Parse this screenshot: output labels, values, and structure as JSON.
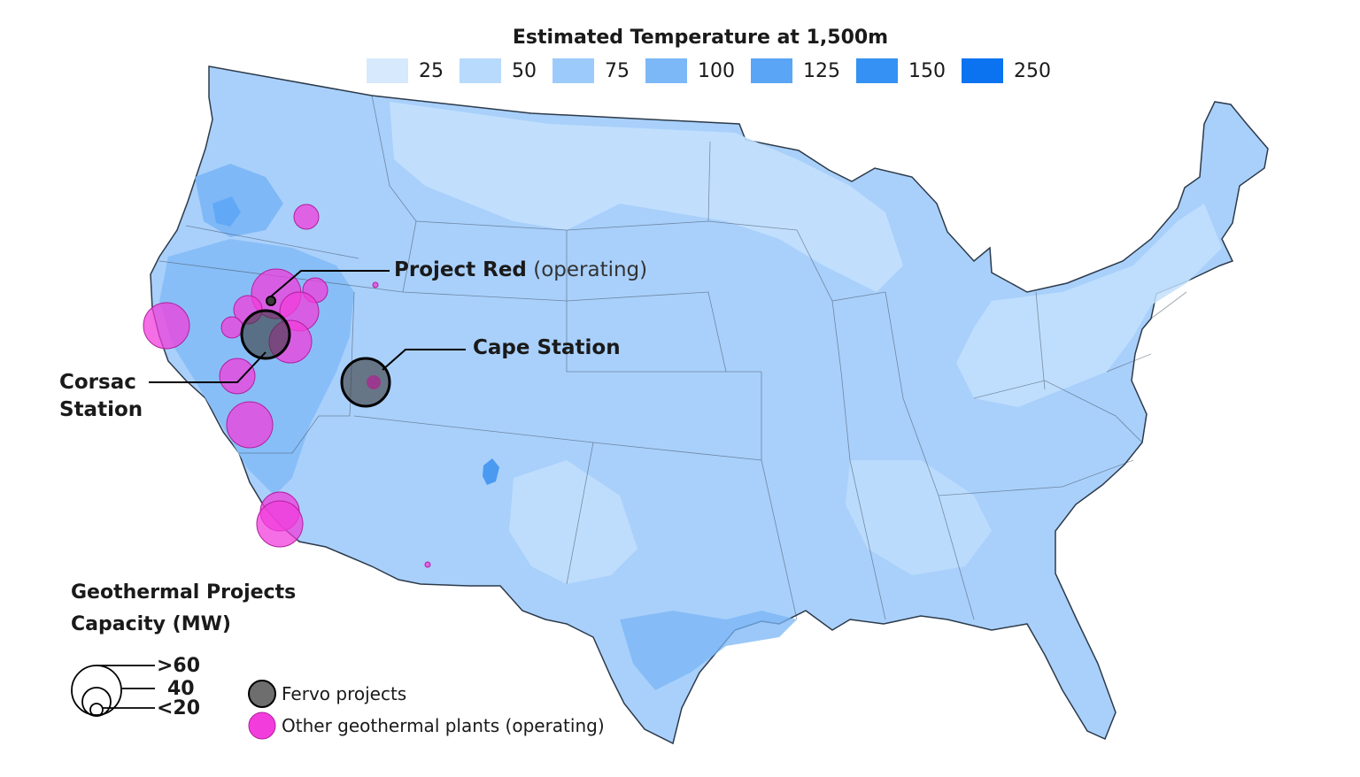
{
  "legend": {
    "title": "Estimated Temperature at 1,500m",
    "bins": [
      {
        "value": "25",
        "color": "#d6e9fd"
      },
      {
        "value": "50",
        "color": "#b8dafd"
      },
      {
        "value": "75",
        "color": "#9ccbfb"
      },
      {
        "value": "100",
        "color": "#7cb8f7"
      },
      {
        "value": "125",
        "color": "#5aa5f5"
      },
      {
        "value": "150",
        "color": "#3591f3"
      },
      {
        "value": "250",
        "color": "#0b73f0"
      }
    ]
  },
  "map_labels": {
    "project_red_name": "Project Red",
    "project_red_status": "(operating)",
    "cape_station": "Cape Station",
    "corsac_line1": "Corsac",
    "corsac_line2": "Station"
  },
  "capacity_legend": {
    "title_line1": "Geothermal Projects",
    "title_line2": "Capacity (MW)",
    "sizes": [
      ">60",
      "40",
      "<20"
    ]
  },
  "key": {
    "fervo": "Fervo projects",
    "other": "Other geothermal plants (operating)",
    "fervo_color": "#555555",
    "other_color": "#f23ddc"
  }
}
